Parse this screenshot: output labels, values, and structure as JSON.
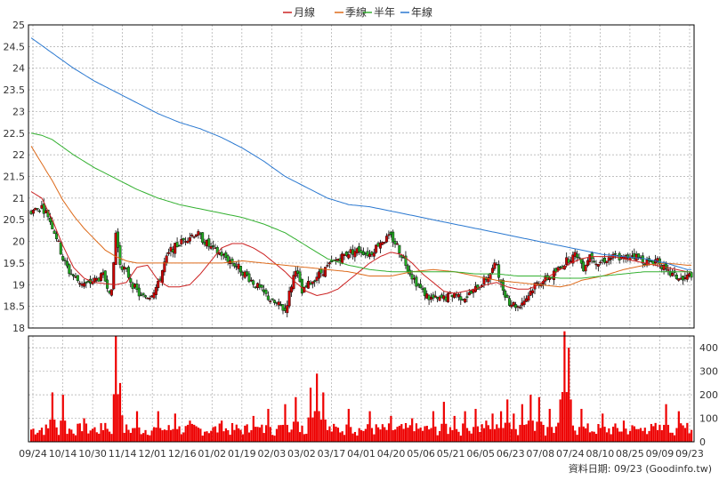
{
  "legend": {
    "items": [
      {
        "label": "月線",
        "color": "#cc2222"
      },
      {
        "label": "季線",
        "color": "#dd6a1a"
      },
      {
        "label": "半年",
        "color": "#33b030"
      },
      {
        "label": "年線",
        "color": "#2a78d0"
      }
    ]
  },
  "credit": "資料日期: 09/23  (Goodinfo.tw)",
  "chart_data": {
    "type": "candlestick",
    "price_axis": {
      "min": 18,
      "max": 25,
      "step": 0.5,
      "tick_labels": [
        "18",
        "18.5",
        "19",
        "19.5",
        "20",
        "20.5",
        "21",
        "21.5",
        "22",
        "22.5",
        "23",
        "23.5",
        "24",
        "24.5",
        "25"
      ]
    },
    "volume_axis": {
      "min": 0,
      "max": 450,
      "tick_labels": [
        "0",
        "100",
        "200",
        "300",
        "400"
      ]
    },
    "x_tick_labels": [
      "09/24",
      "10/14",
      "10/30",
      "11/14",
      "12/01",
      "12/16",
      "01/02",
      "01/19",
      "02/03",
      "03/02",
      "03/17",
      "04/01",
      "04/20",
      "05/06",
      "05/21",
      "06/05",
      "06/23",
      "07/08",
      "07/24",
      "08/10",
      "08/25",
      "09/09",
      "09/23"
    ],
    "grid": true,
    "candle_colors": {
      "up": "#cc0000",
      "down": "#22aa22"
    },
    "moving_averages": {
      "月線": [
        [
          0,
          21.15
        ],
        [
          5,
          21.0
        ],
        [
          10,
          20.5
        ],
        [
          15,
          19.9
        ],
        [
          20,
          19.4
        ],
        [
          25,
          19.15
        ],
        [
          30,
          19.05
        ],
        [
          40,
          19.0
        ],
        [
          45,
          19.05
        ],
        [
          50,
          19.4
        ],
        [
          55,
          19.45
        ],
        [
          60,
          19.1
        ],
        [
          65,
          18.95
        ],
        [
          70,
          18.95
        ],
        [
          75,
          19.0
        ],
        [
          80,
          19.25
        ],
        [
          85,
          19.55
        ],
        [
          90,
          19.85
        ],
        [
          95,
          19.95
        ],
        [
          100,
          19.95
        ],
        [
          105,
          19.85
        ],
        [
          110,
          19.7
        ],
        [
          115,
          19.5
        ],
        [
          120,
          19.3
        ],
        [
          125,
          19.05
        ],
        [
          130,
          18.85
        ],
        [
          135,
          18.75
        ],
        [
          140,
          18.8
        ],
        [
          145,
          18.9
        ],
        [
          150,
          19.1
        ],
        [
          155,
          19.3
        ],
        [
          160,
          19.5
        ],
        [
          165,
          19.65
        ],
        [
          170,
          19.75
        ],
        [
          175,
          19.7
        ],
        [
          180,
          19.5
        ],
        [
          185,
          19.25
        ],
        [
          190,
          19.05
        ],
        [
          195,
          18.85
        ],
        [
          200,
          18.8
        ],
        [
          205,
          18.85
        ],
        [
          210,
          18.9
        ],
        [
          215,
          19.0
        ],
        [
          220,
          19.05
        ],
        [
          225,
          18.95
        ],
        [
          230,
          18.9
        ],
        [
          235,
          18.9
        ],
        [
          240,
          19.0
        ],
        [
          245,
          19.2
        ],
        [
          250,
          19.35
        ],
        [
          255,
          19.5
        ],
        [
          260,
          19.6
        ],
        [
          265,
          19.65
        ],
        [
          270,
          19.65
        ],
        [
          275,
          19.65
        ],
        [
          280,
          19.6
        ],
        [
          285,
          19.55
        ],
        [
          290,
          19.5
        ],
        [
          295,
          19.45
        ],
        [
          300,
          19.4
        ],
        [
          305,
          19.35
        ],
        [
          310,
          19.3
        ]
      ],
      "季線": [
        [
          0,
          22.2
        ],
        [
          5,
          21.8
        ],
        [
          10,
          21.4
        ],
        [
          15,
          20.95
        ],
        [
          20,
          20.6
        ],
        [
          25,
          20.3
        ],
        [
          30,
          20.05
        ],
        [
          35,
          19.8
        ],
        [
          40,
          19.65
        ],
        [
          45,
          19.55
        ],
        [
          50,
          19.5
        ],
        [
          55,
          19.5
        ],
        [
          60,
          19.5
        ],
        [
          70,
          19.5
        ],
        [
          80,
          19.5
        ],
        [
          90,
          19.5
        ],
        [
          100,
          19.55
        ],
        [
          110,
          19.5
        ],
        [
          120,
          19.45
        ],
        [
          130,
          19.4
        ],
        [
          140,
          19.35
        ],
        [
          150,
          19.3
        ],
        [
          155,
          19.25
        ],
        [
          160,
          19.2
        ],
        [
          170,
          19.2
        ],
        [
          180,
          19.3
        ],
        [
          190,
          19.35
        ],
        [
          200,
          19.3
        ],
        [
          210,
          19.2
        ],
        [
          220,
          19.1
        ],
        [
          230,
          19.05
        ],
        [
          240,
          19.0
        ],
        [
          250,
          18.95
        ],
        [
          255,
          19.0
        ],
        [
          260,
          19.1
        ],
        [
          270,
          19.2
        ],
        [
          280,
          19.35
        ],
        [
          290,
          19.45
        ],
        [
          300,
          19.5
        ],
        [
          310,
          19.45
        ]
      ],
      "半年": [
        [
          0,
          22.5
        ],
        [
          5,
          22.45
        ],
        [
          10,
          22.35
        ],
        [
          20,
          22.0
        ],
        [
          30,
          21.7
        ],
        [
          40,
          21.45
        ],
        [
          50,
          21.2
        ],
        [
          60,
          21.0
        ],
        [
          70,
          20.85
        ],
        [
          80,
          20.75
        ],
        [
          90,
          20.65
        ],
        [
          100,
          20.55
        ],
        [
          110,
          20.4
        ],
        [
          120,
          20.2
        ],
        [
          125,
          20.05
        ],
        [
          130,
          19.9
        ],
        [
          135,
          19.75
        ],
        [
          140,
          19.6
        ],
        [
          150,
          19.45
        ],
        [
          160,
          19.35
        ],
        [
          170,
          19.3
        ],
        [
          180,
          19.3
        ],
        [
          190,
          19.3
        ],
        [
          200,
          19.3
        ],
        [
          210,
          19.25
        ],
        [
          220,
          19.25
        ],
        [
          230,
          19.2
        ],
        [
          240,
          19.2
        ],
        [
          250,
          19.15
        ],
        [
          260,
          19.15
        ],
        [
          270,
          19.2
        ],
        [
          280,
          19.25
        ],
        [
          290,
          19.3
        ],
        [
          300,
          19.3
        ],
        [
          310,
          19.3
        ]
      ],
      "年線": [
        [
          0,
          24.7
        ],
        [
          10,
          24.35
        ],
        [
          20,
          24.0
        ],
        [
          30,
          23.7
        ],
        [
          40,
          23.45
        ],
        [
          50,
          23.2
        ],
        [
          60,
          22.95
        ],
        [
          70,
          22.75
        ],
        [
          80,
          22.6
        ],
        [
          90,
          22.4
        ],
        [
          100,
          22.15
        ],
        [
          110,
          21.85
        ],
        [
          120,
          21.5
        ],
        [
          130,
          21.25
        ],
        [
          140,
          21.0
        ],
        [
          150,
          20.85
        ],
        [
          160,
          20.8
        ],
        [
          170,
          20.7
        ],
        [
          180,
          20.6
        ],
        [
          190,
          20.5
        ],
        [
          200,
          20.4
        ],
        [
          210,
          20.3
        ],
        [
          220,
          20.2
        ],
        [
          230,
          20.1
        ],
        [
          240,
          20.0
        ],
        [
          250,
          19.9
        ],
        [
          260,
          19.8
        ],
        [
          270,
          19.7
        ],
        [
          280,
          19.65
        ],
        [
          290,
          19.6
        ],
        [
          300,
          19.5
        ],
        [
          310,
          19.35
        ]
      ]
    },
    "closing_path": [
      [
        0,
        20.7
      ],
      [
        5,
        20.8
      ],
      [
        8,
        20.6
      ],
      [
        12,
        20.1
      ],
      [
        15,
        19.6
      ],
      [
        18,
        19.3
      ],
      [
        22,
        19.1
      ],
      [
        26,
        19.0
      ],
      [
        30,
        19.1
      ],
      [
        34,
        19.2
      ],
      [
        38,
        18.8
      ],
      [
        40,
        20.2
      ],
      [
        42,
        19.5
      ],
      [
        45,
        19.3
      ],
      [
        48,
        19.0
      ],
      [
        52,
        18.7
      ],
      [
        56,
        18.75
      ],
      [
        60,
        19.0
      ],
      [
        63,
        19.5
      ],
      [
        66,
        19.8
      ],
      [
        70,
        19.95
      ],
      [
        74,
        20.1
      ],
      [
        78,
        20.2
      ],
      [
        82,
        20.0
      ],
      [
        86,
        19.8
      ],
      [
        90,
        19.7
      ],
      [
        94,
        19.55
      ],
      [
        98,
        19.4
      ],
      [
        102,
        19.2
      ],
      [
        106,
        19.0
      ],
      [
        110,
        18.8
      ],
      [
        114,
        18.6
      ],
      [
        118,
        18.5
      ],
      [
        120,
        18.4
      ],
      [
        122,
        18.8
      ],
      [
        125,
        19.4
      ],
      [
        128,
        18.8
      ],
      [
        131,
        19.0
      ],
      [
        135,
        19.2
      ],
      [
        140,
        19.4
      ],
      [
        145,
        19.6
      ],
      [
        150,
        19.75
      ],
      [
        155,
        19.8
      ],
      [
        160,
        19.7
      ],
      [
        165,
        20.0
      ],
      [
        170,
        20.1
      ],
      [
        173,
        19.9
      ],
      [
        176,
        19.6
      ],
      [
        180,
        19.2
      ],
      [
        184,
        18.9
      ],
      [
        188,
        18.7
      ],
      [
        192,
        18.65
      ],
      [
        196,
        18.7
      ],
      [
        200,
        18.8
      ],
      [
        204,
        18.7
      ],
      [
        208,
        18.8
      ],
      [
        212,
        19.0
      ],
      [
        216,
        19.2
      ],
      [
        220,
        19.5
      ],
      [
        222,
        19.0
      ],
      [
        226,
        18.6
      ],
      [
        230,
        18.5
      ],
      [
        234,
        18.7
      ],
      [
        238,
        19.0
      ],
      [
        242,
        19.1
      ],
      [
        246,
        19.2
      ],
      [
        250,
        19.4
      ],
      [
        254,
        19.6
      ],
      [
        258,
        19.7
      ],
      [
        261,
        19.4
      ],
      [
        264,
        19.7
      ],
      [
        268,
        19.5
      ],
      [
        272,
        19.6
      ],
      [
        276,
        19.65
      ],
      [
        280,
        19.6
      ],
      [
        284,
        19.7
      ],
      [
        288,
        19.6
      ],
      [
        292,
        19.5
      ],
      [
        296,
        19.6
      ],
      [
        300,
        19.3
      ],
      [
        304,
        19.2
      ],
      [
        308,
        19.1
      ],
      [
        312,
        19.25
      ]
    ],
    "volume_spikes": [
      [
        5,
        60
      ],
      [
        10,
        210
      ],
      [
        15,
        200
      ],
      [
        25,
        100
      ],
      [
        35,
        80
      ],
      [
        40,
        450
      ],
      [
        42,
        250
      ],
      [
        50,
        130
      ],
      [
        60,
        130
      ],
      [
        68,
        120
      ],
      [
        75,
        90
      ],
      [
        90,
        90
      ],
      [
        105,
        110
      ],
      [
        112,
        140
      ],
      [
        120,
        160
      ],
      [
        125,
        190
      ],
      [
        132,
        230
      ],
      [
        135,
        290
      ],
      [
        138,
        210
      ],
      [
        150,
        140
      ],
      [
        160,
        130
      ],
      [
        170,
        110
      ],
      [
        180,
        100
      ],
      [
        190,
        130
      ],
      [
        195,
        170
      ],
      [
        200,
        110
      ],
      [
        205,
        130
      ],
      [
        210,
        140
      ],
      [
        215,
        90
      ],
      [
        218,
        120
      ],
      [
        222,
        130
      ],
      [
        225,
        180
      ],
      [
        228,
        120
      ],
      [
        232,
        160
      ],
      [
        236,
        200
      ],
      [
        240,
        190
      ],
      [
        245,
        140
      ],
      [
        250,
        180
      ],
      [
        252,
        470
      ],
      [
        254,
        400
      ],
      [
        260,
        140
      ],
      [
        270,
        120
      ],
      [
        280,
        90
      ],
      [
        290,
        60
      ],
      [
        295,
        80
      ],
      [
        300,
        160
      ],
      [
        306,
        130
      ],
      [
        310,
        80
      ]
    ]
  }
}
